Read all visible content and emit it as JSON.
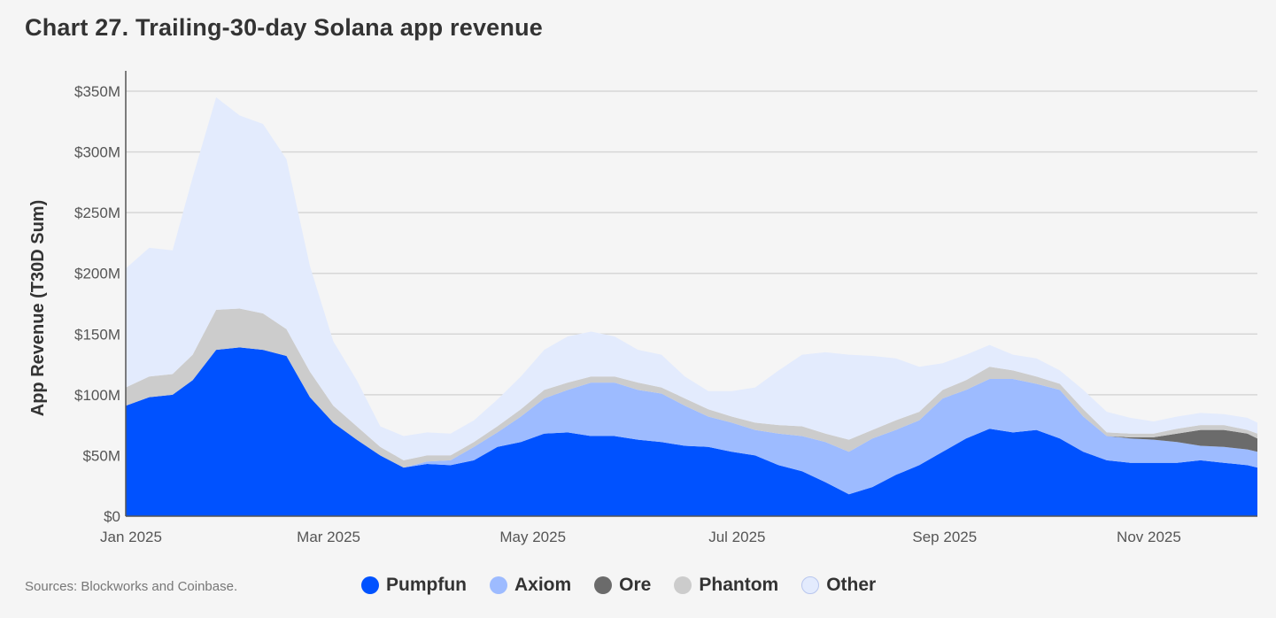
{
  "title": "Chart 27.  Trailing-30-day Solana app revenue",
  "source": "Sources: Blockworks and Coinbase.",
  "chart_data": {
    "type": "area",
    "stacked": true,
    "title": "Chart 27.  Trailing-30-day Solana app revenue",
    "xlabel": "",
    "ylabel": "App Revenue (T30D Sum)",
    "ylim": [
      0,
      350
    ],
    "y_unit": "$M",
    "yticks": [
      "$0",
      "$50M",
      "$100M",
      "$150M",
      "$200M",
      "$250M",
      "$300M",
      "$350M"
    ],
    "ytick_values": [
      0,
      50,
      100,
      150,
      200,
      250,
      300,
      350
    ],
    "xticks": [
      "Jan 2025",
      "Mar 2025",
      "May 2025",
      "Jul 2025",
      "Sep 2025",
      "Nov 2025"
    ],
    "xtick_dates": [
      "2025-01-01",
      "2025-03-01",
      "2025-05-01",
      "2025-07-01",
      "2025-09-01",
      "2025-11-01"
    ],
    "xlim": [
      "2025-01-01",
      "2025-12-05"
    ],
    "grid": true,
    "legend_position": "bottom",
    "x": [
      "2025-01-01",
      "2025-01-08",
      "2025-01-15",
      "2025-01-21",
      "2025-01-28",
      "2025-02-04",
      "2025-02-11",
      "2025-02-18",
      "2025-02-25",
      "2025-03-04",
      "2025-03-11",
      "2025-03-18",
      "2025-03-25",
      "2025-04-01",
      "2025-04-08",
      "2025-04-15",
      "2025-04-22",
      "2025-04-29",
      "2025-05-06",
      "2025-05-13",
      "2025-05-20",
      "2025-05-27",
      "2025-06-03",
      "2025-06-10",
      "2025-06-17",
      "2025-06-24",
      "2025-07-01",
      "2025-07-08",
      "2025-07-15",
      "2025-07-22",
      "2025-07-29",
      "2025-08-05",
      "2025-08-12",
      "2025-08-19",
      "2025-08-26",
      "2025-09-02",
      "2025-09-09",
      "2025-09-16",
      "2025-09-23",
      "2025-09-30",
      "2025-10-07",
      "2025-10-14",
      "2025-10-21",
      "2025-10-28",
      "2025-11-04",
      "2025-11-11",
      "2025-11-18",
      "2025-11-25",
      "2025-12-02",
      "2025-12-05"
    ],
    "series": [
      {
        "name": "Pumpfun",
        "color": "#0052ff",
        "values": [
          91,
          98,
          100,
          112,
          137,
          139,
          137,
          132,
          98,
          77,
          63,
          50,
          40,
          43,
          42,
          46,
          57,
          61,
          68,
          69,
          66,
          66,
          63,
          61,
          58,
          57,
          53,
          50,
          42,
          37,
          28,
          18,
          24,
          34,
          42,
          53,
          64,
          72,
          69,
          71,
          64,
          53,
          46,
          44,
          44,
          44,
          46,
          44,
          42,
          40
        ]
      },
      {
        "name": "Axiom",
        "color": "#9dbbff",
        "values": [
          0,
          0,
          0,
          0,
          0,
          0,
          0,
          0,
          0,
          0,
          0,
          0,
          0,
          2,
          4,
          11,
          12,
          21,
          29,
          35,
          44,
          44,
          41,
          40,
          33,
          25,
          24,
          21,
          26,
          29,
          33,
          35,
          40,
          37,
          37,
          44,
          40,
          41,
          44,
          38,
          40,
          29,
          20,
          20,
          19,
          17,
          12,
          13,
          13,
          13
        ]
      },
      {
        "name": "Ore",
        "color": "#6b6b6b",
        "values": [
          0,
          0,
          0,
          0,
          0,
          0,
          0,
          0,
          0,
          0,
          0,
          0,
          0,
          0,
          0,
          0,
          0,
          0,
          0,
          0,
          0,
          0,
          0,
          0,
          0,
          0,
          0,
          0,
          0,
          0,
          0,
          0,
          0,
          0,
          0,
          0,
          0,
          0,
          0,
          0,
          0,
          0,
          0,
          1,
          2,
          7,
          13,
          14,
          13,
          11
        ]
      },
      {
        "name": "Phantom",
        "color": "#cccccc",
        "values": [
          15,
          17,
          17,
          21,
          33,
          32,
          30,
          22,
          21,
          14,
          11,
          7,
          6,
          5,
          4,
          4,
          5,
          6,
          7,
          6,
          5,
          5,
          6,
          5,
          6,
          6,
          5,
          6,
          7,
          8,
          7,
          10,
          7,
          8,
          7,
          7,
          8,
          10,
          7,
          6,
          5,
          6,
          3,
          3,
          3,
          4,
          4,
          4,
          3,
          4
        ]
      },
      {
        "name": "Other",
        "color": "#e3ebfd",
        "values": [
          98,
          106,
          102,
          146,
          175,
          159,
          156,
          140,
          87,
          53,
          38,
          17,
          20,
          19,
          18,
          18,
          22,
          27,
          33,
          38,
          37,
          33,
          27,
          27,
          18,
          15,
          21,
          29,
          45,
          59,
          67,
          70,
          61,
          51,
          37,
          22,
          21,
          18,
          13,
          15,
          11,
          16,
          17,
          13,
          10,
          10,
          10,
          9,
          10,
          9
        ]
      }
    ]
  },
  "legend": [
    {
      "label": "Pumpfun",
      "color": "#0052ff"
    },
    {
      "label": "Axiom",
      "color": "#9dbbff"
    },
    {
      "label": "Ore",
      "color": "#6b6b6b"
    },
    {
      "label": "Phantom",
      "color": "#cccccc"
    },
    {
      "label": "Other",
      "color": "#e3ebfd"
    }
  ]
}
